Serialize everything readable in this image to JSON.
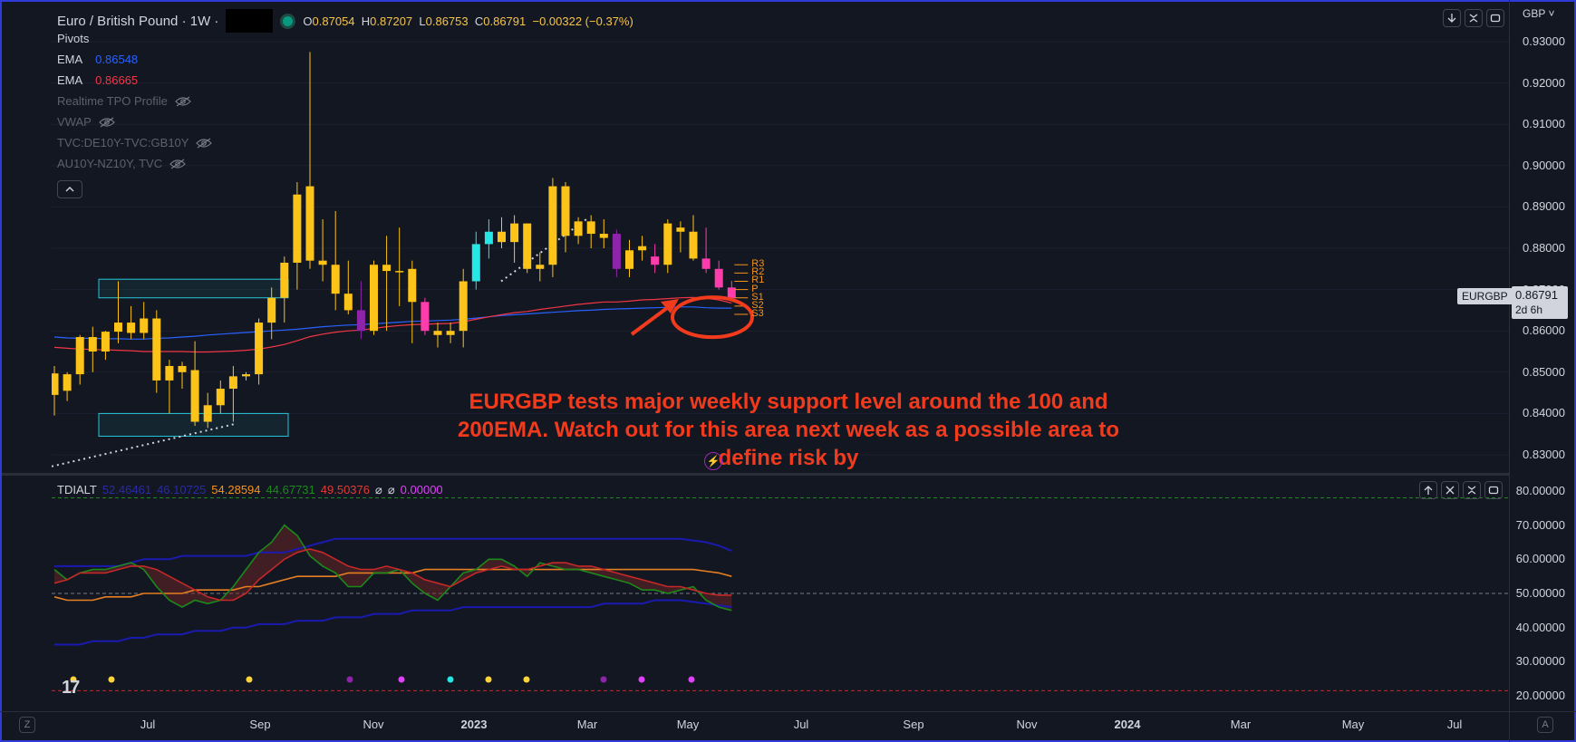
{
  "header": {
    "title": "Euro / British Pound · 1W ·",
    "ohlc": {
      "o_label": "O",
      "o": "0.87054",
      "h_label": "H",
      "h": "0.87207",
      "l_label": "L",
      "l": "0.86753",
      "c_label": "C",
      "c": "0.86791",
      "change": "−0.00322 (−0.37%)"
    },
    "live_color": "#089981"
  },
  "indicators": [
    {
      "name": "Pivots",
      "value": "",
      "color": "",
      "hidden": false
    },
    {
      "name": "EMA",
      "value": "0.86548",
      "color": "#2962ff",
      "hidden": false
    },
    {
      "name": "EMA",
      "value": "0.86665",
      "color": "#f23645",
      "hidden": false
    },
    {
      "name": "Realtime TPO Profile",
      "value": "",
      "color": "",
      "hidden": true
    },
    {
      "name": "VWAP",
      "value": "",
      "color": "",
      "hidden": true
    },
    {
      "name": "TVC:DE10Y-TVC:GB10Y",
      "value": "",
      "color": "",
      "hidden": true
    },
    {
      "name": "AU10Y-NZ10Y, TVC",
      "value": "",
      "color": "",
      "hidden": true
    }
  ],
  "price_axis": {
    "currency": "GBP",
    "labels": [
      "0.93000",
      "0.92000",
      "0.91000",
      "0.90000",
      "0.89000",
      "0.88000",
      "0.87000",
      "0.86000",
      "0.85000",
      "0.84000",
      "0.83000"
    ],
    "symbol_tag": "EURGBP",
    "last_price": "0.86791",
    "countdown": "2d 6h"
  },
  "pivot_labels": [
    "R3",
    "R2",
    "R1",
    "P",
    "S1",
    "S2",
    "S3"
  ],
  "annotation": {
    "text_lines": [
      "EURGBP tests major weekly support level around the 100 and",
      "200EMA. Watch out for this area next week as a possible area to",
      "define risk by"
    ],
    "color": "#f23a1c"
  },
  "oscillator": {
    "name": "TDIALT",
    "values": [
      {
        "v": "52.46461",
        "color": "#2a2aa8"
      },
      {
        "v": "46.10725",
        "color": "#2a2aa8"
      },
      {
        "v": "54.28594",
        "color": "#f7931a"
      },
      {
        "v": "44.67731",
        "color": "#1b8a1b"
      },
      {
        "v": "49.50376",
        "color": "#e53935"
      },
      {
        "v": "⌀",
        "color": "#d1d4dc"
      },
      {
        "v": "⌀",
        "color": "#d1d4dc"
      },
      {
        "v": "0.00000",
        "color": "#e040fb"
      }
    ],
    "axis_labels": [
      "80.00000",
      "70.00000",
      "60.00000",
      "50.00000",
      "40.00000",
      "30.00000",
      "20.00000"
    ]
  },
  "time_axis": {
    "labels": [
      {
        "t": "Jul",
        "bold": false
      },
      {
        "t": "Sep",
        "bold": false
      },
      {
        "t": "Nov",
        "bold": false
      },
      {
        "t": "2023",
        "bold": true
      },
      {
        "t": "Mar",
        "bold": false
      },
      {
        "t": "May",
        "bold": false
      },
      {
        "t": "Jul",
        "bold": false
      },
      {
        "t": "Sep",
        "bold": false
      },
      {
        "t": "Nov",
        "bold": false
      },
      {
        "t": "2024",
        "bold": true
      },
      {
        "t": "Mar",
        "bold": false
      },
      {
        "t": "May",
        "bold": false
      },
      {
        "t": "Jul",
        "bold": false
      }
    ],
    "left_btn": "Z",
    "right_btn": "A"
  },
  "logo": "17",
  "colors": {
    "bull": "#fcc419",
    "bear_magenta": "#e91e63",
    "purple": "#8e24aa",
    "cyan": "#26e6e6",
    "pink_down": "#ff3cac",
    "ema_fast": "#2962ff",
    "ema_slow": "#f23645"
  },
  "chart_data": {
    "type": "candlestick",
    "title": "Euro / British Pound · 1W",
    "ylim": [
      0.825,
      0.935
    ],
    "candles": [
      {
        "o": 0.8497,
        "h": 0.8515,
        "l": 0.8395,
        "c": 0.8445,
        "col": "bull"
      },
      {
        "o": 0.8455,
        "h": 0.85,
        "l": 0.843,
        "c": 0.8495,
        "col": "bull"
      },
      {
        "o": 0.8495,
        "h": 0.859,
        "l": 0.847,
        "c": 0.8585,
        "col": "bull"
      },
      {
        "o": 0.8585,
        "h": 0.861,
        "l": 0.85,
        "c": 0.855,
        "col": "bull"
      },
      {
        "o": 0.855,
        "h": 0.86,
        "l": 0.853,
        "c": 0.8598,
        "col": "bull"
      },
      {
        "o": 0.8598,
        "h": 0.872,
        "l": 0.857,
        "c": 0.862,
        "col": "bull"
      },
      {
        "o": 0.862,
        "h": 0.866,
        "l": 0.858,
        "c": 0.8595,
        "col": "bull"
      },
      {
        "o": 0.8595,
        "h": 0.867,
        "l": 0.858,
        "c": 0.863,
        "col": "bull"
      },
      {
        "o": 0.863,
        "h": 0.865,
        "l": 0.845,
        "c": 0.848,
        "col": "bull"
      },
      {
        "o": 0.848,
        "h": 0.853,
        "l": 0.84,
        "c": 0.8515,
        "col": "bull"
      },
      {
        "o": 0.8515,
        "h": 0.8525,
        "l": 0.846,
        "c": 0.85,
        "col": "bull"
      },
      {
        "o": 0.8505,
        "h": 0.8575,
        "l": 0.837,
        "c": 0.838,
        "col": "bull"
      },
      {
        "o": 0.838,
        "h": 0.845,
        "l": 0.8365,
        "c": 0.842,
        "col": "bull"
      },
      {
        "o": 0.842,
        "h": 0.848,
        "l": 0.84,
        "c": 0.846,
        "col": "bull"
      },
      {
        "o": 0.846,
        "h": 0.8515,
        "l": 0.838,
        "c": 0.849,
        "col": "bull"
      },
      {
        "o": 0.849,
        "h": 0.85,
        "l": 0.848,
        "c": 0.8495,
        "col": "bull"
      },
      {
        "o": 0.8495,
        "h": 0.863,
        "l": 0.847,
        "c": 0.862,
        "col": "bull"
      },
      {
        "o": 0.862,
        "h": 0.8705,
        "l": 0.858,
        "c": 0.868,
        "col": "bull"
      },
      {
        "o": 0.868,
        "h": 0.878,
        "l": 0.862,
        "c": 0.8765,
        "col": "bull"
      },
      {
        "o": 0.8765,
        "h": 0.896,
        "l": 0.87,
        "c": 0.893,
        "col": "bull"
      },
      {
        "o": 0.895,
        "h": 0.9275,
        "l": 0.875,
        "c": 0.877,
        "col": "bull"
      },
      {
        "o": 0.877,
        "h": 0.887,
        "l": 0.872,
        "c": 0.876,
        "col": "bull"
      },
      {
        "o": 0.876,
        "h": 0.889,
        "l": 0.865,
        "c": 0.869,
        "col": "bull"
      },
      {
        "o": 0.869,
        "h": 0.877,
        "l": 0.864,
        "c": 0.865,
        "col": "bull"
      },
      {
        "o": 0.865,
        "h": 0.872,
        "l": 0.858,
        "c": 0.86,
        "col": "purple"
      },
      {
        "o": 0.86,
        "h": 0.877,
        "l": 0.859,
        "c": 0.876,
        "col": "bull"
      },
      {
        "o": 0.876,
        "h": 0.883,
        "l": 0.86,
        "c": 0.8745,
        "col": "bull"
      },
      {
        "o": 0.8745,
        "h": 0.885,
        "l": 0.866,
        "c": 0.8745,
        "col": "bull"
      },
      {
        "o": 0.875,
        "h": 0.877,
        "l": 0.857,
        "c": 0.867,
        "col": "bull"
      },
      {
        "o": 0.867,
        "h": 0.868,
        "l": 0.859,
        "c": 0.86,
        "col": "pink"
      },
      {
        "o": 0.86,
        "h": 0.862,
        "l": 0.856,
        "c": 0.859,
        "col": "bull"
      },
      {
        "o": 0.859,
        "h": 0.862,
        "l": 0.857,
        "c": 0.86,
        "col": "bull"
      },
      {
        "o": 0.86,
        "h": 0.875,
        "l": 0.856,
        "c": 0.872,
        "col": "bull"
      },
      {
        "o": 0.872,
        "h": 0.884,
        "l": 0.87,
        "c": 0.881,
        "col": "cyan"
      },
      {
        "o": 0.881,
        "h": 0.887,
        "l": 0.8775,
        "c": 0.884,
        "col": "cyan"
      },
      {
        "o": 0.884,
        "h": 0.8875,
        "l": 0.88,
        "c": 0.8815,
        "col": "bull"
      },
      {
        "o": 0.8815,
        "h": 0.888,
        "l": 0.8765,
        "c": 0.886,
        "col": "bull"
      },
      {
        "o": 0.886,
        "h": 0.886,
        "l": 0.874,
        "c": 0.875,
        "col": "bull"
      },
      {
        "o": 0.875,
        "h": 0.879,
        "l": 0.872,
        "c": 0.876,
        "col": "bull"
      },
      {
        "o": 0.876,
        "h": 0.897,
        "l": 0.873,
        "c": 0.895,
        "col": "bull"
      },
      {
        "o": 0.895,
        "h": 0.896,
        "l": 0.879,
        "c": 0.883,
        "col": "bull"
      },
      {
        "o": 0.883,
        "h": 0.8875,
        "l": 0.881,
        "c": 0.8865,
        "col": "bull"
      },
      {
        "o": 0.8865,
        "h": 0.888,
        "l": 0.88,
        "c": 0.8835,
        "col": "bull"
      },
      {
        "o": 0.8835,
        "h": 0.887,
        "l": 0.88,
        "c": 0.8825,
        "col": "bull"
      },
      {
        "o": 0.8835,
        "h": 0.8845,
        "l": 0.873,
        "c": 0.875,
        "col": "purple"
      },
      {
        "o": 0.875,
        "h": 0.882,
        "l": 0.873,
        "c": 0.8795,
        "col": "bull"
      },
      {
        "o": 0.8795,
        "h": 0.883,
        "l": 0.877,
        "c": 0.8805,
        "col": "bull"
      },
      {
        "o": 0.878,
        "h": 0.881,
        "l": 0.874,
        "c": 0.876,
        "col": "pink"
      },
      {
        "o": 0.876,
        "h": 0.887,
        "l": 0.874,
        "c": 0.886,
        "col": "bull"
      },
      {
        "o": 0.885,
        "h": 0.8865,
        "l": 0.879,
        "c": 0.884,
        "col": "bull"
      },
      {
        "o": 0.884,
        "h": 0.888,
        "l": 0.877,
        "c": 0.8775,
        "col": "bull"
      },
      {
        "o": 0.8775,
        "h": 0.885,
        "l": 0.874,
        "c": 0.875,
        "col": "pink"
      },
      {
        "o": 0.875,
        "h": 0.877,
        "l": 0.87,
        "c": 0.8705,
        "col": "pink"
      },
      {
        "o": 0.8705,
        "h": 0.8721,
        "l": 0.8675,
        "c": 0.8679,
        "col": "pink"
      }
    ],
    "ema_fast": [
      0.8585,
      0.8583,
      0.8582,
      0.8582,
      0.8581,
      0.8581,
      0.858,
      0.858,
      0.8582,
      0.8583,
      0.8585,
      0.8587,
      0.859,
      0.8592,
      0.8594,
      0.8596,
      0.8598,
      0.86,
      0.8602,
      0.8604,
      0.8607,
      0.861,
      0.8612,
      0.8614,
      0.8615,
      0.8617,
      0.8619,
      0.8621,
      0.8623,
      0.8624,
      0.8625,
      0.8626,
      0.8628,
      0.8631,
      0.8634,
      0.8637,
      0.8639,
      0.8641,
      0.8643,
      0.8645,
      0.8647,
      0.8649,
      0.865,
      0.8652,
      0.8653,
      0.8654,
      0.8655,
      0.8656,
      0.8657,
      0.8658,
      0.8658,
      0.8656,
      0.8655,
      0.8655
    ],
    "ema_slow": [
      0.856,
      0.8558,
      0.8556,
      0.8555,
      0.8554,
      0.8553,
      0.8552,
      0.855,
      0.855,
      0.855,
      0.855,
      0.8549,
      0.8549,
      0.855,
      0.8551,
      0.8553,
      0.8556,
      0.8561,
      0.8567,
      0.8576,
      0.8586,
      0.8592,
      0.8597,
      0.86,
      0.8602,
      0.8606,
      0.861,
      0.8613,
      0.8615,
      0.8616,
      0.8617,
      0.8618,
      0.8622,
      0.8628,
      0.8634,
      0.8639,
      0.8644,
      0.8647,
      0.8652,
      0.8656,
      0.866,
      0.8664,
      0.8667,
      0.867,
      0.867,
      0.8672,
      0.8675,
      0.8676,
      0.8678,
      0.868,
      0.8681,
      0.8679,
      0.8675,
      0.8667
    ],
    "osc": {
      "ylim": [
        15,
        85
      ],
      "upper_band": [
        58,
        58,
        58,
        58,
        58,
        58,
        59,
        60,
        60,
        60,
        61,
        61,
        61,
        61,
        61,
        61,
        62,
        62,
        62,
        63,
        64,
        65,
        66,
        66,
        66,
        66,
        66,
        66,
        66,
        66,
        66,
        66,
        66,
        66,
        66,
        66,
        66,
        66,
        66,
        66,
        66,
        66,
        66,
        66,
        66,
        66,
        66,
        66,
        66,
        66,
        65.5,
        65,
        64,
        62.5
      ],
      "lower_band": [
        35,
        35,
        35,
        36,
        36,
        36,
        37,
        37,
        38,
        38,
        38,
        39,
        39,
        39,
        40,
        40,
        41,
        41,
        41,
        42,
        42,
        42,
        43,
        43,
        43,
        44,
        44,
        44,
        45,
        45,
        45,
        45,
        46,
        46,
        46,
        46,
        46,
        46,
        46,
        46,
        46,
        46,
        46,
        47,
        47,
        47,
        47,
        48,
        48,
        48,
        47.5,
        47,
        46.5,
        46
      ],
      "mid": [
        49,
        48,
        48,
        48,
        49,
        49,
        49,
        50,
        50,
        50,
        50,
        51,
        51,
        51,
        51,
        52,
        52,
        53,
        54,
        55,
        55,
        55,
        55,
        56,
        56,
        56,
        56,
        56,
        56,
        57,
        57,
        57,
        57,
        57,
        57,
        57,
        57,
        57,
        57,
        57,
        57,
        57,
        57,
        57,
        57,
        57,
        57,
        57,
        57,
        57,
        57,
        56.5,
        56,
        55
      ],
      "fast": [
        57,
        54,
        56,
        57,
        57,
        58,
        59,
        57,
        52,
        48,
        46,
        48,
        47,
        48,
        52,
        57,
        62,
        65,
        70,
        67,
        61,
        58,
        56,
        52,
        52,
        56,
        56,
        57,
        53,
        50,
        48,
        52,
        56,
        57,
        60,
        60,
        58,
        55,
        59,
        58,
        57,
        57,
        56,
        55,
        54,
        53,
        51,
        51,
        50,
        51,
        52,
        48,
        46,
        45
      ],
      "slow": [
        53,
        54,
        56,
        56,
        56,
        57,
        58,
        58,
        57,
        55,
        53,
        51,
        49,
        48,
        48,
        50,
        54,
        57,
        60,
        62,
        63,
        62,
        60,
        58,
        57,
        57,
        58,
        57,
        56,
        54,
        53,
        52,
        54,
        56,
        57,
        58,
        57,
        57,
        58,
        59,
        59,
        58,
        58,
        57,
        56,
        55,
        54,
        53,
        52,
        52,
        51,
        50,
        49.5,
        49.5
      ],
      "hline_top": 78,
      "hline_mid": 50,
      "hline_bottom": 21.5
    }
  }
}
